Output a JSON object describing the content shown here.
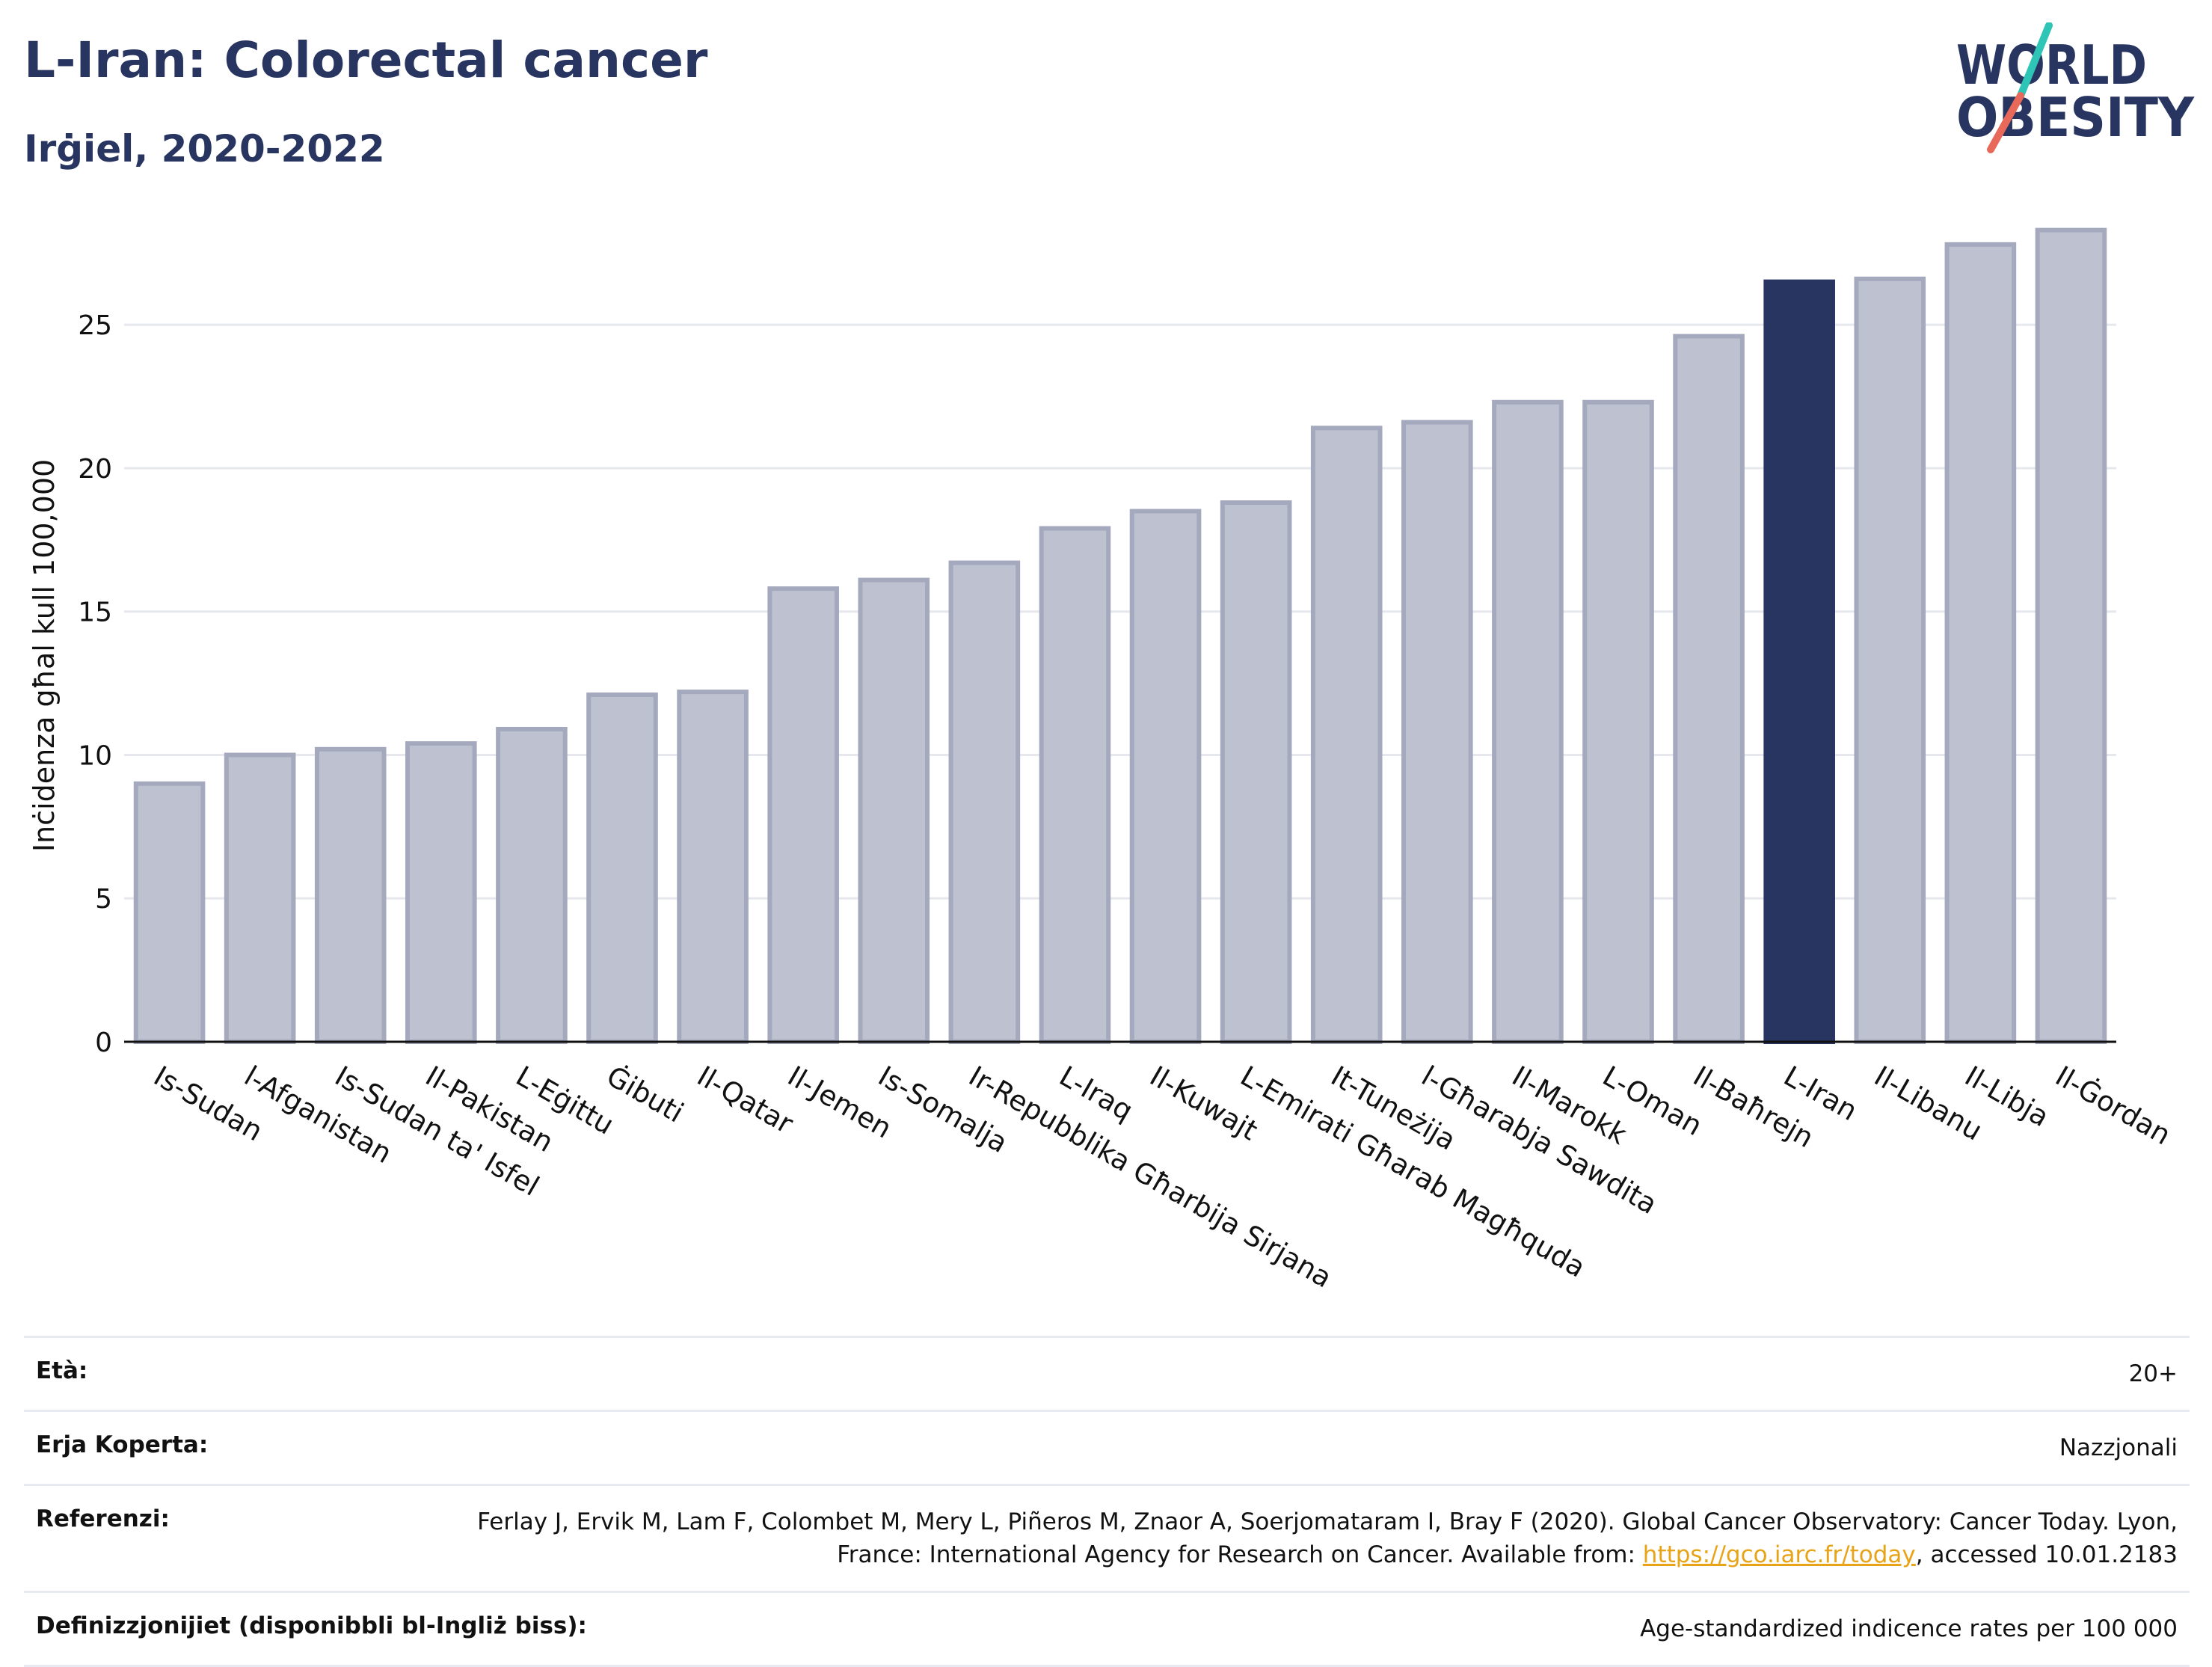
{
  "header": {
    "title": "L-Iran: Colorectal cancer",
    "subtitle": "Irġiel, 2020-2022"
  },
  "logo": {
    "line1": "WORLD",
    "line2": "OBESITY",
    "colors": {
      "text": "#283561",
      "slash_top": "#2ec4b6",
      "slash_bottom": "#e8685a"
    }
  },
  "colors": {
    "bar_fill": "#bec2d0",
    "bar_stroke": "#a4a9bd",
    "highlight": "#283561",
    "grid": "#e6e8ee"
  },
  "chart_data": {
    "type": "bar",
    "ylabel": "Inċidenza għal kull 100,000",
    "xlabel": "",
    "ylim": [
      0,
      28.5
    ],
    "yticks": [
      0,
      5,
      10,
      15,
      20,
      25
    ],
    "grid": true,
    "highlight": "L-Iran",
    "categories": [
      "Is-Sudan",
      "l-Afganistan",
      "Is-Sudan ta' Isfel",
      "Il-Pakistan",
      "L-Eġittu",
      "Ġibuti",
      "Il-Qatar",
      "Il-Jemen",
      "Is-Somalja",
      "Ir-Repubblika Għarbija Sirjana",
      "L-Iraq",
      "Il-Kuwajt",
      "L-Emirati Għarab Magħquda",
      "It-Tuneżija",
      "l-Għarabja Sawdita",
      "Il-Marokk",
      "L-Oman",
      "Il-Baħrejn",
      "L-Iran",
      "Il-Libanu",
      "Il-Libja",
      "Il-Ġordan"
    ],
    "values": [
      9.0,
      10.0,
      10.2,
      10.4,
      10.9,
      12.1,
      12.2,
      15.8,
      16.1,
      16.7,
      17.9,
      18.5,
      18.8,
      21.4,
      21.6,
      22.3,
      22.3,
      24.6,
      26.5,
      26.6,
      27.8,
      28.3
    ]
  },
  "info": {
    "age_label": "Età:",
    "age_value": "20+",
    "area_label": "Erja Koperta:",
    "area_value": "Nazzjonali",
    "ref_label": "Referenzi:",
    "ref_text_1": "Ferlay J, Ervik M, Lam F, Colombet M, Mery L, Piñeros M, Znaor A, Soerjomataram I, Bray F (2020). Global Cancer Observatory: Cancer Today. Lyon, France: International Agency for Research on Cancer. Available from: ",
    "ref_link": "https://gco.iarc.fr/today",
    "ref_text_2": ", accessed 10.01.2183",
    "def_label": "Definizzjonijiet (disponibbli bl-Ingliż biss):",
    "def_value": "Age-standardized indicence rates per 100 000"
  }
}
